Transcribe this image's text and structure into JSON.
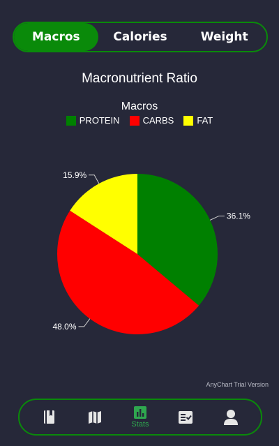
{
  "tabs": [
    {
      "label": "Macros",
      "active": true
    },
    {
      "label": "Calories",
      "active": false
    },
    {
      "label": "Weight",
      "active": false
    }
  ],
  "chart_data": {
    "type": "pie",
    "title": "Macronutrient Ratio",
    "legend_title": "Macros",
    "legend_position": "top",
    "slices": [
      {
        "name": "PROTEIN",
        "value": 36.1,
        "label": "36.1%",
        "color": "#008000"
      },
      {
        "name": "CARBS",
        "value": 48.0,
        "label": "48.0%",
        "color": "#ff0000"
      },
      {
        "name": "FAT",
        "value": 15.9,
        "label": "15.9%",
        "color": "#ffff00"
      }
    ]
  },
  "credit": "AnyChart Trial Version",
  "bottom_nav": [
    {
      "icon": "book-icon",
      "label": ""
    },
    {
      "icon": "map-icon",
      "label": ""
    },
    {
      "icon": "stats-icon",
      "label": "Stats",
      "active": true
    },
    {
      "icon": "checklist-icon",
      "label": ""
    },
    {
      "icon": "person-icon",
      "label": ""
    }
  ],
  "colors": {
    "background": "#262839",
    "accent": "#0a8a0a",
    "active_label": "#2fa84f",
    "icon": "#e6e6e6"
  }
}
